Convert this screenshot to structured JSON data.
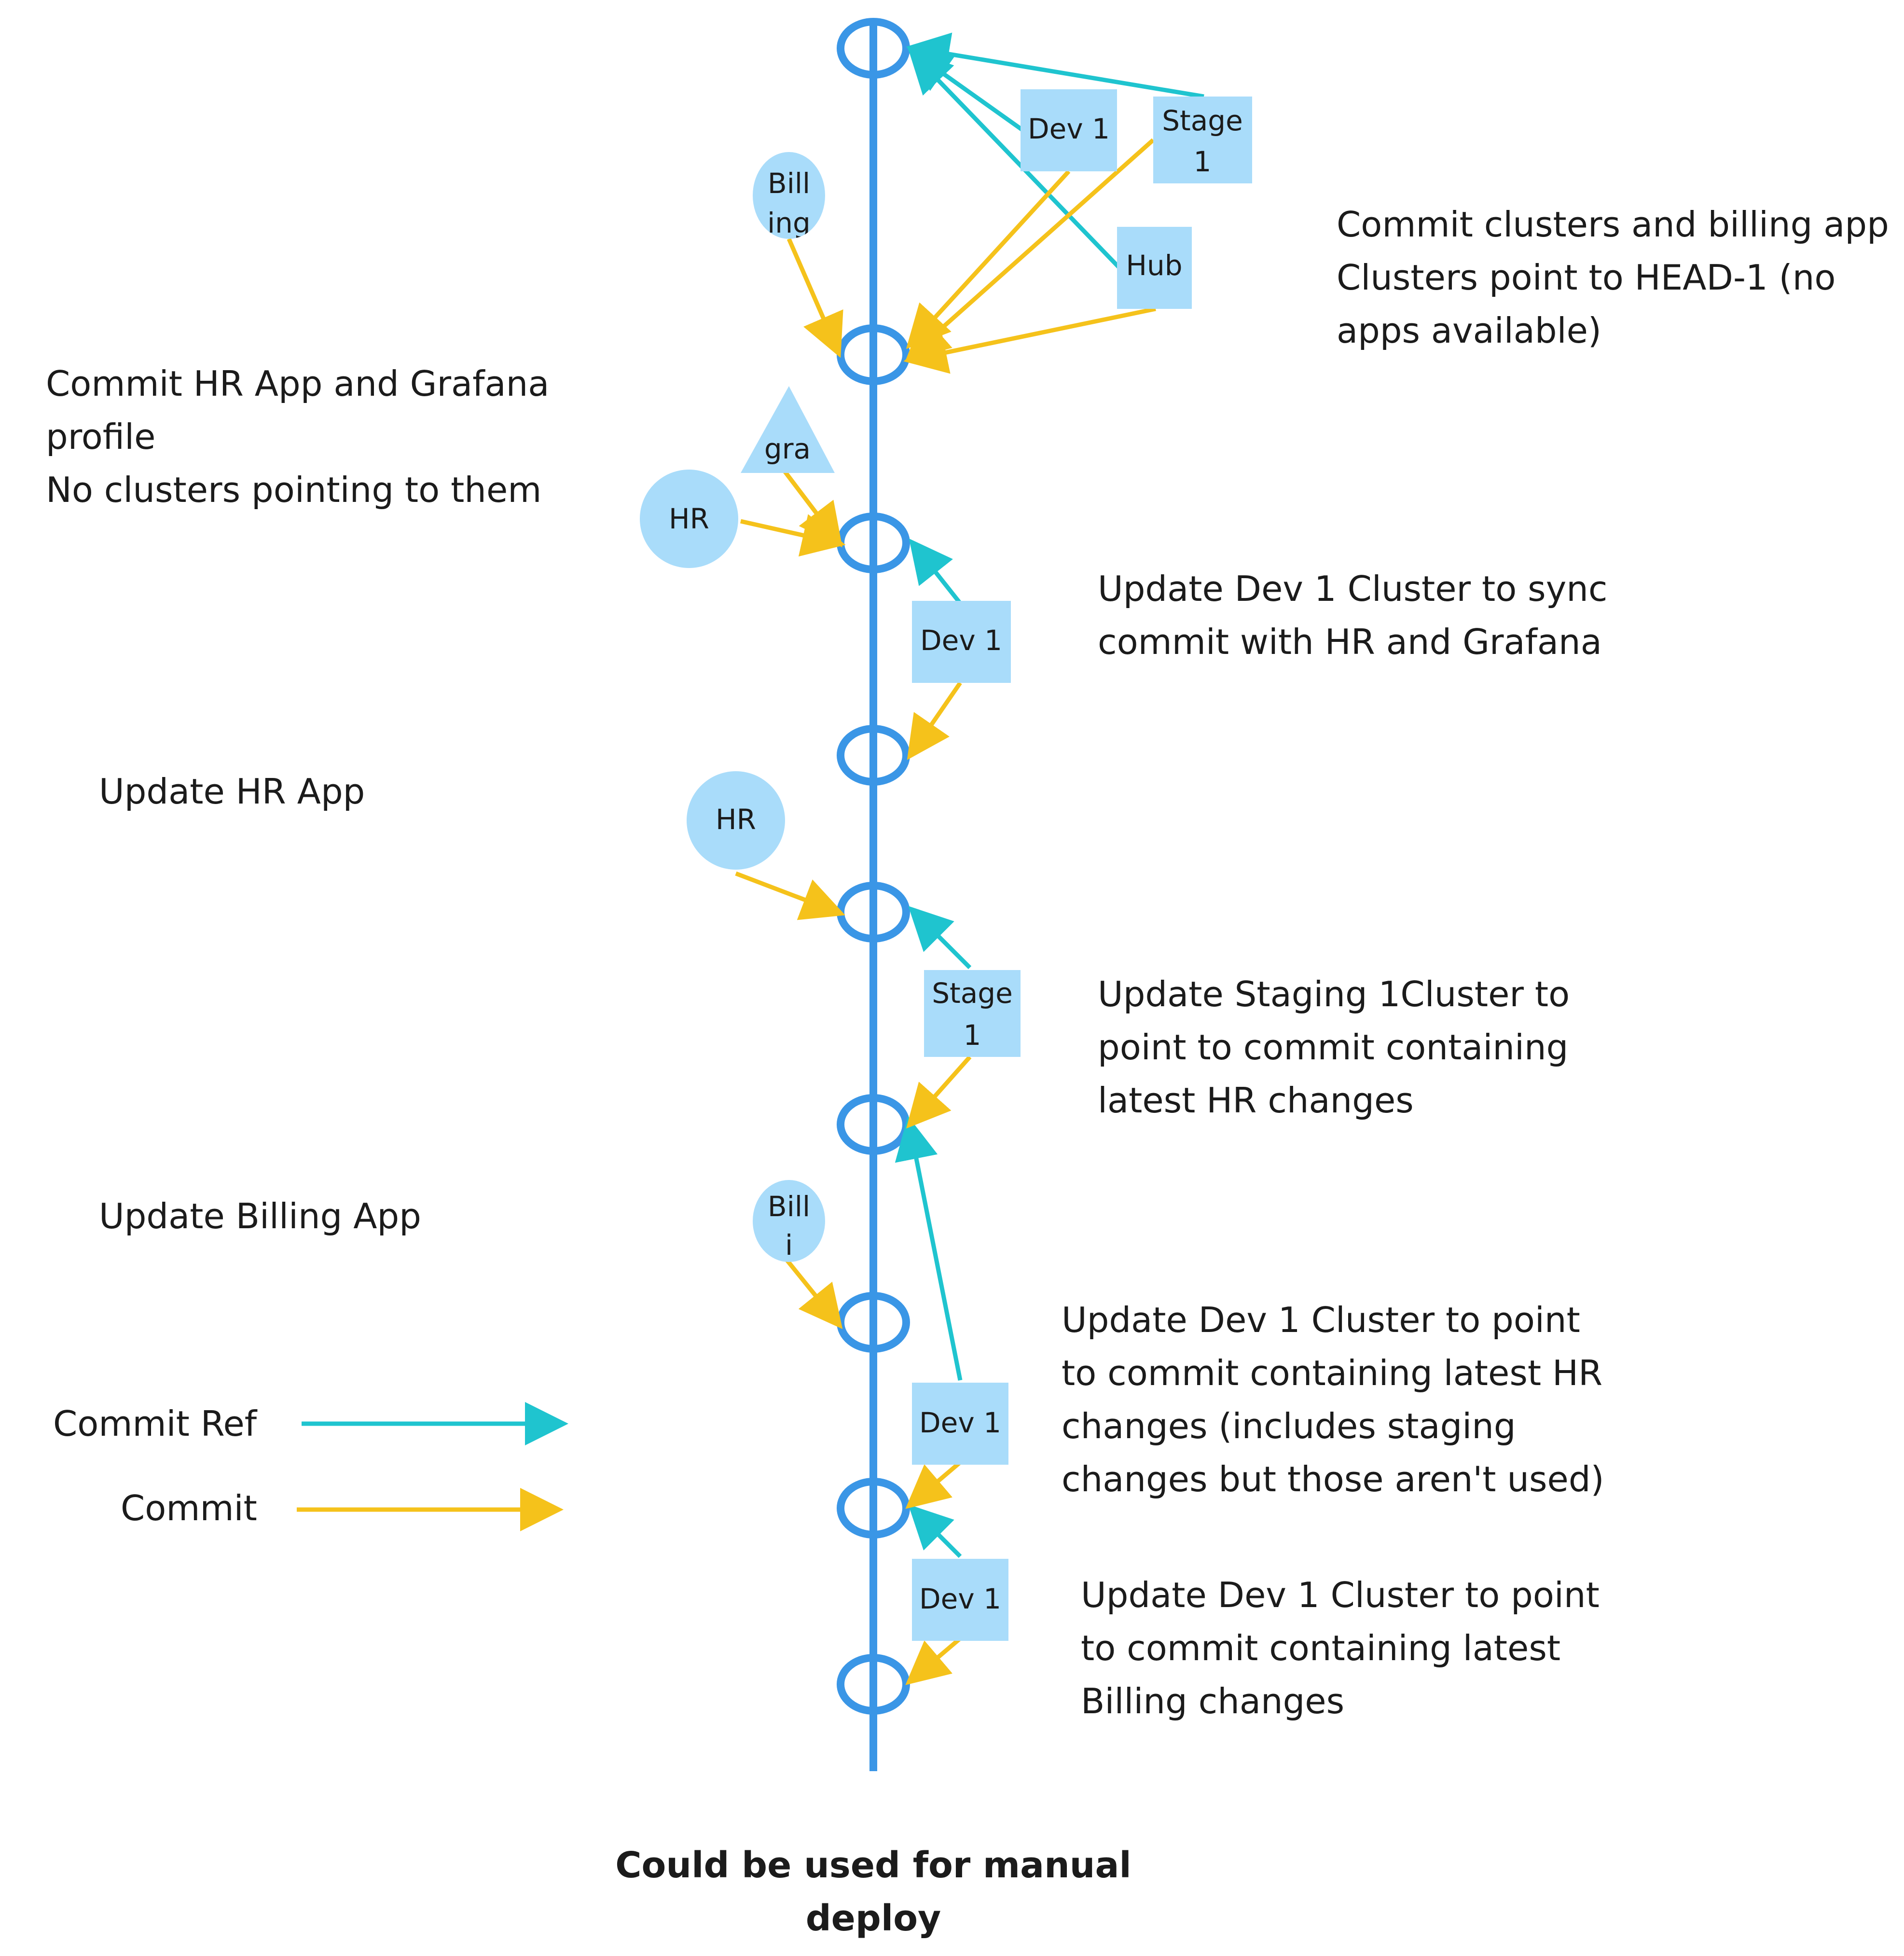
{
  "colors": {
    "timeline": "#3a96e6",
    "commit_ref": "#1fc4cf",
    "commit": "#f5c21b",
    "node_fill": "#a9dcfa",
    "text": "#1b1b1b"
  },
  "nodes": {
    "dev1_top": "Dev 1",
    "stage1_top_line1": "Stage",
    "stage1_top_line2": "1",
    "hub": "Hub",
    "billing_top_line1": "Bill",
    "billing_top_line2": "ing",
    "gra": "gra",
    "hr_1": "HR",
    "dev1_b": "Dev 1",
    "hr_2": "HR",
    "stage1_b_line1": "Stage",
    "stage1_b_line2": "1",
    "billing_2_line1": "Bill",
    "billing_2_line2": "i",
    "dev1_c": "Dev 1",
    "dev1_d": "Dev 1"
  },
  "annotations": {
    "commit_clusters": [
      "Commit clusters and billing app",
      "Clusters point to HEAD-1 (no",
      "apps available)"
    ],
    "commit_hr_grafana": [
      "Commit HR App and Grafana",
      "profile",
      "No clusters pointing to them"
    ],
    "update_dev1_sync": [
      "Update Dev 1 Cluster to sync",
      "commit with HR and Grafana"
    ],
    "update_hr_app": [
      "Update HR App"
    ],
    "update_staging": [
      "Update Staging 1Cluster to",
      "point to commit containing",
      "latest HR changes"
    ],
    "update_billing_app": [
      "Update Billing App"
    ],
    "update_dev1_hr": [
      "Update Dev 1 Cluster to point",
      "to commit containing latest HR",
      "changes (includes staging",
      "changes but those aren't used)"
    ],
    "update_dev1_billing": [
      "Update Dev 1 Cluster to point",
      "to commit containing latest",
      "Billing changes"
    ]
  },
  "legend": {
    "commit_ref": "Commit Ref",
    "commit": "Commit"
  },
  "footer": [
    "Could be used for manual",
    "deploy"
  ]
}
